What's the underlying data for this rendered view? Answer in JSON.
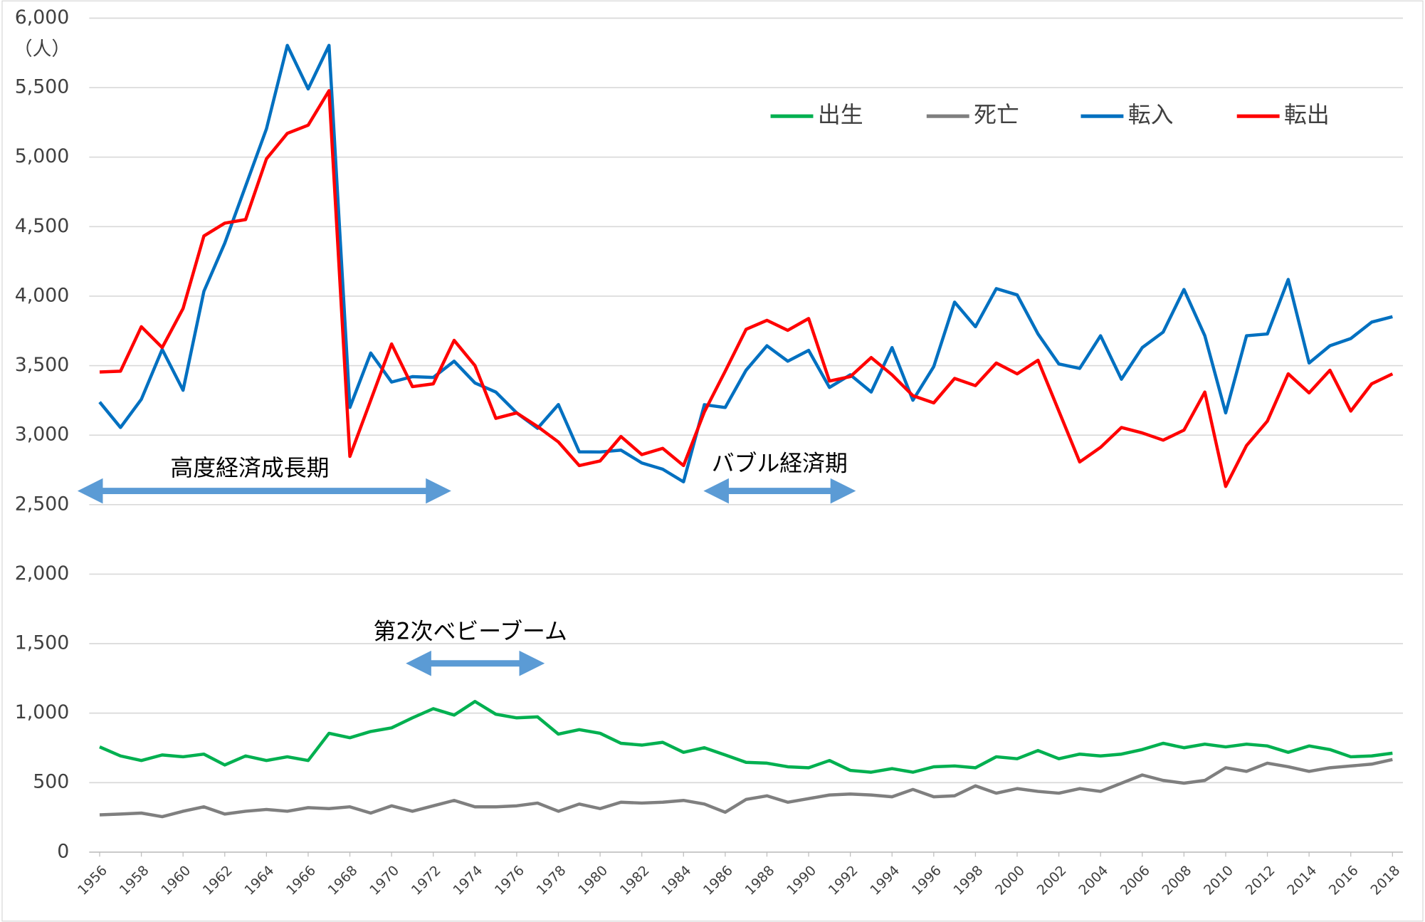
{
  "chart_data": {
    "type": "line",
    "y_unit_label": "（人）",
    "x": [
      1956,
      1957,
      1958,
      1959,
      1960,
      1961,
      1962,
      1963,
      1964,
      1965,
      1966,
      1967,
      1968,
      1969,
      1970,
      1971,
      1972,
      1973,
      1974,
      1975,
      1976,
      1977,
      1978,
      1979,
      1980,
      1981,
      1982,
      1983,
      1984,
      1985,
      1986,
      1987,
      1988,
      1989,
      1990,
      1991,
      1992,
      1993,
      1994,
      1995,
      1996,
      1997,
      1998,
      1999,
      2000,
      2001,
      2002,
      2003,
      2004,
      2005,
      2006,
      2007,
      2008,
      2009,
      2010,
      2011,
      2012,
      2013,
      2014,
      2015,
      2016,
      2017,
      2018
    ],
    "xlim": [
      1955.5,
      2018.5
    ],
    "xticks": [
      1956,
      1958,
      1960,
      1962,
      1964,
      1966,
      1968,
      1970,
      1972,
      1974,
      1976,
      1978,
      1980,
      1982,
      1984,
      1986,
      1988,
      1990,
      1992,
      1994,
      1996,
      1998,
      2000,
      2002,
      2004,
      2006,
      2008,
      2010,
      2012,
      2014,
      2016,
      2018
    ],
    "ylim": [
      0,
      6000
    ],
    "yticks": [
      0,
      500,
      {
        "value": 1000,
        "label": "1,000"
      },
      {
        "value": 1500,
        "label": "1,500"
      },
      {
        "value": 2000,
        "label": "2,000"
      },
      {
        "value": 2500,
        "label": "2,500"
      },
      {
        "value": 3000,
        "label": "3,000"
      },
      {
        "value": 3500,
        "label": "3,500"
      },
      {
        "value": 4000,
        "label": "4,000"
      },
      {
        "value": 4500,
        "label": "4,500"
      },
      {
        "value": 5000,
        "label": "5,000"
      },
      {
        "value": 5500,
        "label": "5,500"
      },
      {
        "value": 6000,
        "label": "6,000"
      }
    ],
    "grid": true,
    "legend": "top",
    "annotations": [
      "高度経済成長期",
      "バブル経済期",
      "第2次ベビーブーム"
    ],
    "series": [
      {
        "name": "出生",
        "color": "#00b050",
        "values": [
          757,
          692,
          659,
          699,
          686,
          705,
          627,
          692,
          659,
          686,
          659,
          855,
          823,
          868,
          894,
          966,
          1032,
          986,
          1084,
          992,
          966,
          973,
          849,
          881,
          855,
          783,
          770,
          790,
          718,
          751,
          699,
          646,
          640,
          614,
          607,
          659,
          588,
          575,
          601,
          575,
          614,
          620,
          607,
          686,
          672,
          731,
          672,
          705,
          692,
          705,
          738,
          783,
          751,
          777,
          757,
          777,
          764,
          718,
          764,
          738,
          686,
          692,
          712
        ]
      },
      {
        "name": "死亡",
        "color": "#7f7f7f",
        "values": [
          268,
          274,
          281,
          255,
          294,
          326,
          274,
          294,
          307,
          294,
          320,
          313,
          326,
          281,
          333,
          294,
          333,
          372,
          326,
          326,
          333,
          353,
          294,
          346,
          313,
          359,
          353,
          359,
          372,
          346,
          287,
          379,
          405,
          359,
          385,
          411,
          418,
          411,
          398,
          451,
          398,
          405,
          477,
          424,
          457,
          437,
          424,
          457,
          437,
          496,
          555,
          516,
          496,
          516,
          607,
          581,
          640,
          614,
          581,
          607,
          620,
          633,
          666
        ]
      },
      {
        "name": "転入",
        "color": "#0070c0",
        "values": [
          3238,
          3055,
          3258,
          3617,
          3323,
          4035,
          4381,
          4792,
          5204,
          5804,
          5491,
          5804,
          3199,
          3591,
          3382,
          3421,
          3415,
          3532,
          3375,
          3310,
          3160,
          3049,
          3220,
          2880,
          2879,
          2892,
          2800,
          2755,
          2664,
          3219,
          3199,
          3467,
          3643,
          3532,
          3610,
          3343,
          3434,
          3310,
          3630,
          3251,
          3493,
          3957,
          3780,
          4054,
          4009,
          3728,
          3512,
          3480,
          3715,
          3402,
          3630,
          3741,
          4048,
          3715,
          3160,
          3715,
          3728,
          4120,
          3519,
          3643,
          3695,
          3813,
          3852
        ]
      },
      {
        "name": "転出",
        "color": "#ff0000",
        "values": [
          3454,
          3460,
          3780,
          3630,
          3911,
          4433,
          4525,
          4551,
          4988,
          5171,
          5230,
          5478,
          2847,
          3251,
          3656,
          3349,
          3369,
          3682,
          3500,
          3121,
          3160,
          3062,
          2951,
          2781,
          2814,
          2990,
          2860,
          2905,
          2781,
          3167,
          3460,
          3761,
          3826,
          3754,
          3839,
          3389,
          3421,
          3558,
          3434,
          3284,
          3232,
          3408,
          3356,
          3519,
          3441,
          3539,
          3173,
          2807,
          2912,
          3055,
          3016,
          2964,
          3036,
          3310,
          2631,
          2925,
          3101,
          3441,
          3304,
          3467,
          3173,
          3369,
          3441
        ]
      }
    ]
  }
}
